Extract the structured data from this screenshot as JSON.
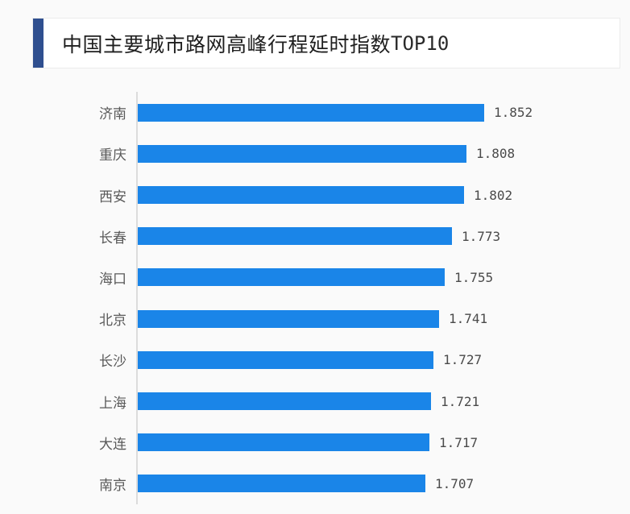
{
  "page": {
    "background_color": "#fafafa"
  },
  "header": {
    "title_cn": "中国主要城市路网高峰行程延时指数",
    "title_suffix": "TOP10",
    "accent_color": "#2f4f8f",
    "card_background": "#ffffff",
    "card_border_color": "#ececec"
  },
  "chart_data": {
    "type": "bar",
    "orientation": "horizontal",
    "title": "中国主要城市路网高峰行程延时指数TOP10",
    "categories": [
      "济南",
      "重庆",
      "西安",
      "长春",
      "海口",
      "北京",
      "长沙",
      "上海",
      "大连",
      "南京"
    ],
    "values": [
      1.852,
      1.808,
      1.802,
      1.773,
      1.755,
      1.741,
      1.727,
      1.721,
      1.717,
      1.707
    ],
    "value_labels": [
      "1.852",
      "1.808",
      "1.802",
      "1.773",
      "1.755",
      "1.741",
      "1.727",
      "1.721",
      "1.717",
      "1.707"
    ],
    "xlabel": "",
    "ylabel": "",
    "xlim": [
      1.0,
      2.0
    ],
    "grid": false,
    "legend": false,
    "bar_color": "#1a85e8",
    "axis_line_color": "#dcdcdc",
    "category_label_color": "#595959",
    "value_label_color": "#4a4a4a"
  }
}
